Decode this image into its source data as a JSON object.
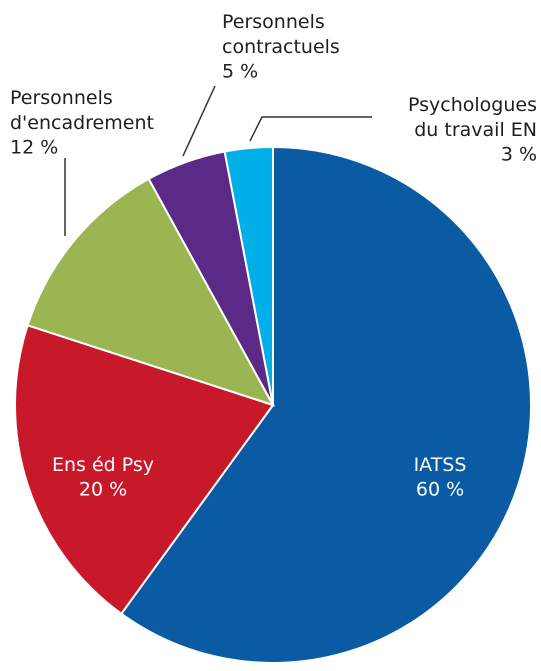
{
  "chart_data": {
    "type": "pie",
    "categories": [
      "IATSS",
      "Ens éd Psy",
      "Personnels\nd'encadrement",
      "Personnels\ncontractuels",
      "Psychologues\ndu travail EN"
    ],
    "values": [
      60,
      20,
      12,
      5,
      3
    ],
    "value_labels": [
      "60 %",
      "20 %",
      "12 %",
      "5 %",
      "3 %"
    ],
    "colors": [
      "#0a5ba3",
      "#c8192b",
      "#9bb552",
      "#5b2a86",
      "#00aee8"
    ]
  }
}
